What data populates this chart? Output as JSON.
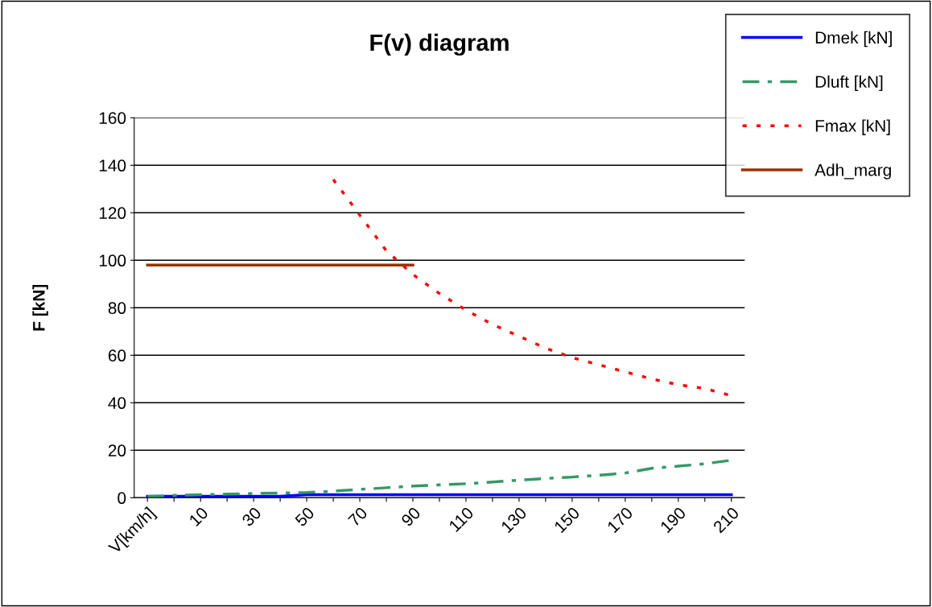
{
  "chart_data": {
    "type": "line",
    "title": "F(v) diagram",
    "ylabel": "F [kN]",
    "categories": [
      "V[km/h]",
      null,
      "10",
      null,
      "30",
      null,
      "50",
      null,
      "70",
      null,
      "90",
      null,
      "110",
      null,
      "130",
      null,
      "150",
      null,
      "170",
      null,
      "190",
      null,
      "210"
    ],
    "series": [
      {
        "name": "Dmek [kN]",
        "color": "#0000ff",
        "line_style": "solid",
        "values": [
          0.6,
          0.6,
          0.6,
          0.6,
          0.6,
          0.6,
          1.3,
          1.3,
          1.3,
          1.3,
          1.3,
          1.3,
          1.3,
          1.3,
          1.3,
          1.3,
          1.3,
          1.3,
          1.3,
          1.3,
          1.3,
          1.3,
          1.3
        ]
      },
      {
        "name": "Dluft [kN]",
        "color": "#339966",
        "line_style": "dashed",
        "values": [
          0.5,
          1.0,
          1.3,
          1.5,
          1.8,
          2.0,
          2.2,
          2.8,
          3.5,
          4.2,
          4.9,
          5.4,
          5.9,
          6.6,
          7.4,
          8.1,
          8.7,
          9.5,
          10.4,
          12.4,
          13.3,
          14.3,
          15.8
        ]
      },
      {
        "name": "Fmax [kN]",
        "color": "#ff0000",
        "line_style": "dotted",
        "values": [
          null,
          null,
          null,
          null,
          null,
          null,
          null,
          134,
          119,
          104,
          94,
          86,
          79,
          73,
          68,
          63,
          59,
          56,
          53,
          50,
          47.6,
          46,
          43
        ]
      },
      {
        "name": "Adh_marg",
        "color": "#993300",
        "line_style": "solid",
        "values": [
          98,
          98,
          98,
          98,
          98,
          98,
          98,
          98,
          98,
          98,
          98,
          null,
          null,
          null,
          null,
          null,
          null,
          null,
          null,
          null,
          null,
          null,
          null
        ]
      }
    ],
    "ylim": [
      0,
      160
    ],
    "yticks": [
      0,
      20,
      40,
      60,
      80,
      100,
      120,
      140,
      160
    ],
    "grid": "y",
    "legend": "top right",
    "marker": "none"
  }
}
